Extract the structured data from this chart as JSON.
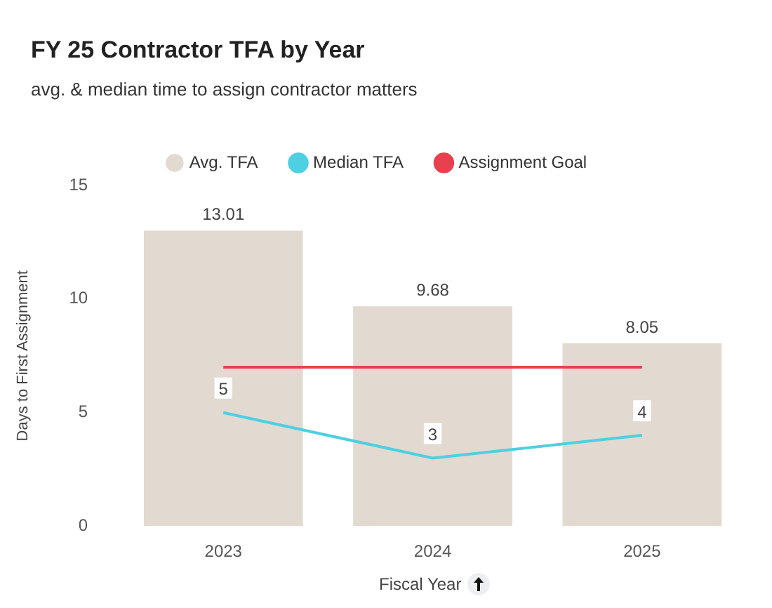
{
  "chart_data": {
    "type": "bar",
    "title": "FY 25 Contractor TFA by Year",
    "subtitle": "avg. & median time to assign contractor matters",
    "xlabel": "Fiscal Year",
    "ylabel": "Days to First Assignment",
    "categories": [
      "2023",
      "2024",
      "2025"
    ],
    "series": [
      {
        "name": "Avg. TFA",
        "color": "#e2d9d1",
        "values": [
          13.01,
          9.68,
          8.05
        ],
        "value_labels": [
          "13.01",
          "9.68",
          "8.05"
        ]
      },
      {
        "name": "Median TFA",
        "type": "line",
        "color": "#4dd0e1",
        "values": [
          5,
          3,
          4
        ],
        "value_labels": [
          "5",
          "3",
          "4"
        ]
      },
      {
        "name": "Assignment Goal",
        "type": "line",
        "color": "#e8404f",
        "values": [
          7,
          7,
          7
        ]
      }
    ],
    "ylim": [
      0,
      15
    ],
    "yticks": [
      0,
      5,
      10,
      15
    ],
    "grid": false,
    "legend": "top",
    "marker": "none"
  }
}
